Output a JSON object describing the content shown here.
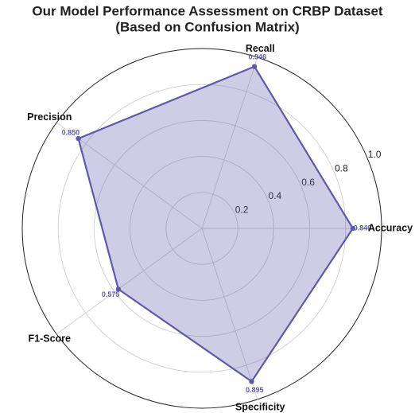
{
  "chart_data": {
    "type": "radar",
    "title": [
      "Our Model Performance Assessment on CRBP Dataset",
      "(Based on Confusion Matrix)"
    ],
    "categories": [
      "Accuracy",
      "Recall",
      "Precision",
      "F1-Score",
      "Specificity"
    ],
    "values": [
      0.84,
      0.946,
      0.85,
      0.575,
      0.895
    ],
    "value_labels": [
      "0.840",
      "0.946",
      "0.850",
      "0.575",
      "0.895"
    ],
    "color": "#5e5aa8",
    "rlim": [
      0,
      1
    ],
    "rticks": [
      0.2,
      0.4,
      0.6,
      0.8,
      {
        "value": 1,
        "label": "1.0"
      }
    ],
    "grid": true
  }
}
